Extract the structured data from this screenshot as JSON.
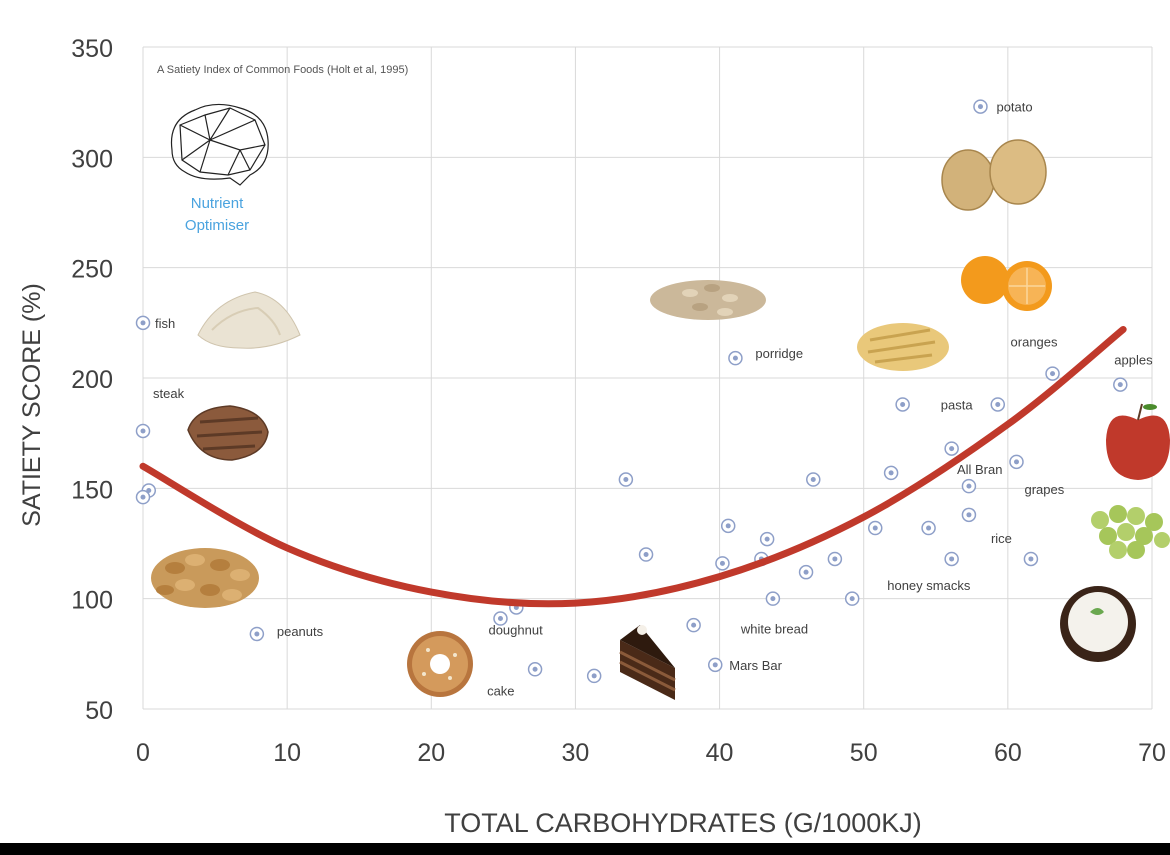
{
  "chart_data": {
    "type": "scatter",
    "title": "A Satiety Index of Common Foods (Holt et al, 1995)",
    "xlabel": "TOTAL CARBOHYDRATES (G/1000KJ)",
    "ylabel": "SATIETY SCORE (%)",
    "xlim": [
      0,
      70
    ],
    "ylim": [
      50,
      350
    ],
    "xticks": [
      0,
      10,
      20,
      30,
      40,
      50,
      60,
      70
    ],
    "yticks": [
      50,
      100,
      150,
      200,
      250,
      300,
      350
    ],
    "grid": true,
    "points": [
      {
        "x": 0,
        "y": 225,
        "label": "fish"
      },
      {
        "x": 0,
        "y": 176,
        "label": "steak"
      },
      {
        "x": 0.4,
        "y": 149,
        "label": ""
      },
      {
        "x": 0,
        "y": 146,
        "label": ""
      },
      {
        "x": 7.9,
        "y": 84,
        "label": "peanuts"
      },
      {
        "x": 24.8,
        "y": 91,
        "label": "doughnut"
      },
      {
        "x": 25.9,
        "y": 96,
        "label": ""
      },
      {
        "x": 27.2,
        "y": 68,
        "label": "cake"
      },
      {
        "x": 31.3,
        "y": 65,
        "label": ""
      },
      {
        "x": 33.5,
        "y": 154,
        "label": ""
      },
      {
        "x": 34.9,
        "y": 120,
        "label": ""
      },
      {
        "x": 38.2,
        "y": 88,
        "label": ""
      },
      {
        "x": 39.7,
        "y": 70,
        "label": "Mars Bar"
      },
      {
        "x": 40.2,
        "y": 116,
        "label": ""
      },
      {
        "x": 40.6,
        "y": 133,
        "label": ""
      },
      {
        "x": 41.1,
        "y": 209,
        "label": "porridge"
      },
      {
        "x": 42.9,
        "y": 118,
        "label": ""
      },
      {
        "x": 43.3,
        "y": 127,
        "label": ""
      },
      {
        "x": 43.7,
        "y": 100,
        "label": "white bread"
      },
      {
        "x": 46.0,
        "y": 112,
        "label": ""
      },
      {
        "x": 46.5,
        "y": 154,
        "label": ""
      },
      {
        "x": 48.0,
        "y": 118,
        "label": ""
      },
      {
        "x": 49.2,
        "y": 100,
        "label": ""
      },
      {
        "x": 50.8,
        "y": 132,
        "label": "honey smacks"
      },
      {
        "x": 51.9,
        "y": 157,
        "label": ""
      },
      {
        "x": 52.7,
        "y": 188,
        "label": ""
      },
      {
        "x": 54.5,
        "y": 132,
        "label": ""
      },
      {
        "x": 56.1,
        "y": 168,
        "label": ""
      },
      {
        "x": 56.1,
        "y": 118,
        "label": ""
      },
      {
        "x": 57.3,
        "y": 151,
        "label": "All Bran"
      },
      {
        "x": 57.3,
        "y": 138,
        "label": "rice"
      },
      {
        "x": 58.1,
        "y": 323,
        "label": "potato"
      },
      {
        "x": 59.3,
        "y": 188,
        "label": "pasta"
      },
      {
        "x": 60.6,
        "y": 162,
        "label": "grapes"
      },
      {
        "x": 61.6,
        "y": 118,
        "label": ""
      },
      {
        "x": 63.1,
        "y": 202,
        "label": "oranges"
      },
      {
        "x": 67.8,
        "y": 197,
        "label": "apples"
      }
    ],
    "trendline": {
      "type": "quadratic",
      "x_range": [
        0,
        68
      ],
      "values": [
        [
          0,
          160
        ],
        [
          10,
          123
        ],
        [
          20,
          103
        ],
        [
          30,
          98
        ],
        [
          40,
          110
        ],
        [
          50,
          137
        ],
        [
          60,
          179
        ],
        [
          68,
          222
        ]
      ],
      "color": "#c0392b"
    }
  },
  "logo": {
    "line1": "Nutrient",
    "line2": "Optimiser",
    "color": "#4aa3df"
  },
  "colors": {
    "point": "#8e9fc8",
    "grid": "#d9d9d9",
    "axis_text": "#404040",
    "label_text": "#404040"
  }
}
